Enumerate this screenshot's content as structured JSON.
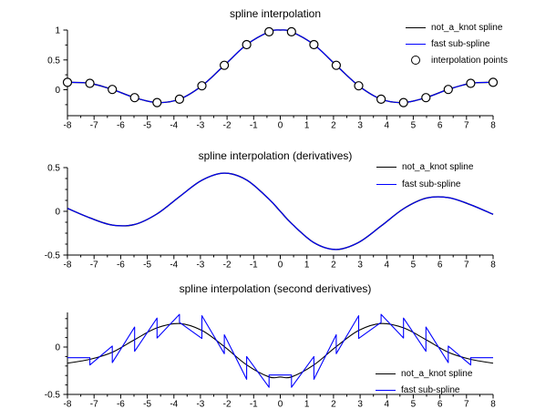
{
  "figure": {
    "background": "#ffffff",
    "colors": {
      "not_a_knot": "#000000",
      "fast_sub_spline": "#0000ff",
      "axis": "#000000"
    }
  },
  "chart_data": [
    {
      "type": "line",
      "title": "spline interpolation",
      "x_range": [
        -8,
        8
      ],
      "y_range": [
        -0.435,
        1.0
      ],
      "x_tick_values": [
        -8,
        -7,
        -6,
        -5,
        -4,
        -3,
        -2,
        -1,
        0,
        1,
        2,
        3,
        4,
        5,
        6,
        7,
        8
      ],
      "x_tick_labels": [
        "-8",
        "-7",
        "-6",
        "-5",
        "-4",
        "-3",
        "-2",
        "-1",
        "0",
        "1",
        "2",
        "3",
        "4",
        "5",
        "6",
        "7",
        "8"
      ],
      "y_tick_values": [
        1,
        0.5,
        0
      ],
      "y_tick_labels": [
        "1",
        "0.5",
        "0"
      ],
      "y_minor_ticks": [
        0.75,
        0.25,
        -0.25
      ],
      "legend": [
        {
          "label": "not_a_knot spline",
          "marker": "line",
          "color": "#000000"
        },
        {
          "label": "fast sub-spline",
          "marker": "line",
          "color": "#0000ff"
        },
        {
          "label": "interpolation points",
          "marker": "circle",
          "color": "#000000"
        }
      ],
      "series": [
        {
          "name": "not_a_knot spline",
          "type": "smooth",
          "color": "#000000",
          "width": 1.4,
          "points": [
            [
              -8,
              0.124
            ],
            [
              -7.158,
              0.107
            ],
            [
              -6.316,
              0.005
            ],
            [
              -5.474,
              -0.132
            ],
            [
              -4.632,
              -0.215
            ],
            [
              -3.789,
              -0.159
            ],
            [
              -2.947,
              0.066
            ],
            [
              -2.105,
              0.409
            ],
            [
              -1.263,
              0.755
            ],
            [
              -0.421,
              0.971
            ],
            [
              0,
              1.0
            ],
            [
              0.421,
              0.971
            ],
            [
              1.263,
              0.755
            ],
            [
              2.105,
              0.409
            ],
            [
              2.947,
              0.066
            ],
            [
              3.789,
              -0.159
            ],
            [
              4.632,
              -0.215
            ],
            [
              5.474,
              -0.132
            ],
            [
              6.316,
              0.005
            ],
            [
              7.158,
              0.107
            ],
            [
              8,
              0.124
            ]
          ]
        },
        {
          "name": "fast sub-spline",
          "type": "smooth",
          "color": "#0000ff",
          "width": 1.1,
          "points": [
            [
              -8,
              0.124
            ],
            [
              -7.158,
              0.107
            ],
            [
              -6.316,
              0.005
            ],
            [
              -5.474,
              -0.132
            ],
            [
              -4.632,
              -0.215
            ],
            [
              -3.789,
              -0.159
            ],
            [
              -2.947,
              0.066
            ],
            [
              -2.105,
              0.409
            ],
            [
              -1.263,
              0.755
            ],
            [
              -0.421,
              0.971
            ],
            [
              0,
              1.0
            ],
            [
              0.421,
              0.971
            ],
            [
              1.263,
              0.755
            ],
            [
              2.105,
              0.409
            ],
            [
              2.947,
              0.066
            ],
            [
              3.789,
              -0.159
            ],
            [
              4.632,
              -0.215
            ],
            [
              5.474,
              -0.132
            ],
            [
              6.316,
              0.005
            ],
            [
              7.158,
              0.107
            ],
            [
              8,
              0.124
            ]
          ]
        },
        {
          "name": "interpolation points",
          "type": "markers",
          "color": "#000000",
          "width": 1.2,
          "points": [
            [
              -8,
              0.124
            ],
            [
              -7.158,
              0.107
            ],
            [
              -6.316,
              0.005
            ],
            [
              -5.474,
              -0.132
            ],
            [
              -4.632,
              -0.215
            ],
            [
              -3.789,
              -0.159
            ],
            [
              -2.947,
              0.066
            ],
            [
              -2.105,
              0.409
            ],
            [
              -1.263,
              0.755
            ],
            [
              -0.421,
              0.971
            ],
            [
              0.421,
              0.971
            ],
            [
              1.263,
              0.755
            ],
            [
              2.105,
              0.409
            ],
            [
              2.947,
              0.066
            ],
            [
              3.789,
              -0.159
            ],
            [
              4.632,
              -0.215
            ],
            [
              5.474,
              -0.132
            ],
            [
              6.316,
              0.005
            ],
            [
              7.158,
              0.107
            ],
            [
              8,
              0.124
            ]
          ]
        }
      ]
    },
    {
      "type": "line",
      "title": "spline interpolation (derivatives)",
      "x_range": [
        -8,
        8
      ],
      "y_range": [
        -0.5,
        0.5
      ],
      "x_tick_values": [
        -8,
        -7,
        -6,
        -5,
        -4,
        -3,
        -2,
        -1,
        0,
        1,
        2,
        3,
        4,
        5,
        6,
        7,
        8
      ],
      "x_tick_labels": [
        "-8",
        "-7",
        "-6",
        "-5",
        "-4",
        "-3",
        "-2",
        "-1",
        "0",
        "1",
        "2",
        "3",
        "4",
        "5",
        "6",
        "7",
        "8"
      ],
      "y_tick_values": [
        0.5,
        0,
        -0.5
      ],
      "y_tick_labels": [
        "0.5",
        "0",
        "-0.5"
      ],
      "y_minor_ticks": [
        0.375,
        0.25,
        0.125,
        -0.125,
        -0.25,
        -0.375
      ],
      "legend": [
        {
          "label": "not_a_knot spline",
          "marker": "line",
          "color": "#000000"
        },
        {
          "label": "fast sub-spline",
          "marker": "line",
          "color": "#0000ff"
        }
      ],
      "series": [
        {
          "name": "not_a_knot spline",
          "type": "smooth",
          "color": "#000000",
          "width": 1.4,
          "points": [
            [
              -8,
              0.034
            ],
            [
              -7.158,
              -0.075
            ],
            [
              -6.316,
              -0.157
            ],
            [
              -5.474,
              -0.15
            ],
            [
              -4.632,
              -0.029
            ],
            [
              -3.789,
              0.168
            ],
            [
              -2.947,
              0.355
            ],
            [
              -2.105,
              0.436
            ],
            [
              -1.263,
              0.358
            ],
            [
              -0.421,
              0.139
            ],
            [
              0,
              0
            ],
            [
              0.421,
              -0.139
            ],
            [
              1.263,
              -0.358
            ],
            [
              2.105,
              -0.436
            ],
            [
              2.947,
              -0.355
            ],
            [
              3.789,
              -0.168
            ],
            [
              4.632,
              0.029
            ],
            [
              5.474,
              0.15
            ],
            [
              6.316,
              0.157
            ],
            [
              7.158,
              0.075
            ],
            [
              8,
              -0.034
            ]
          ]
        },
        {
          "name": "fast sub-spline",
          "type": "smooth",
          "color": "#0000ff",
          "width": 1.1,
          "points": [
            [
              -8,
              0.034
            ],
            [
              -7.158,
              -0.075
            ],
            [
              -6.316,
              -0.157
            ],
            [
              -5.474,
              -0.15
            ],
            [
              -4.632,
              -0.029
            ],
            [
              -3.789,
              0.168
            ],
            [
              -2.947,
              0.355
            ],
            [
              -2.105,
              0.436
            ],
            [
              -1.263,
              0.358
            ],
            [
              -0.421,
              0.139
            ],
            [
              0,
              0
            ],
            [
              0.421,
              -0.139
            ],
            [
              1.263,
              -0.358
            ],
            [
              2.105,
              -0.436
            ],
            [
              2.947,
              -0.355
            ],
            [
              3.789,
              -0.168
            ],
            [
              4.632,
              0.029
            ],
            [
              5.474,
              0.15
            ],
            [
              6.316,
              0.157
            ],
            [
              7.158,
              0.075
            ],
            [
              8,
              -0.034
            ]
          ]
        }
      ]
    },
    {
      "type": "line",
      "title": "spline interpolation (second derivatives)",
      "x_range": [
        -8,
        8
      ],
      "y_range": [
        -0.5,
        0.365
      ],
      "x_tick_values": [
        -8,
        -7,
        -6,
        -5,
        -4,
        -3,
        -2,
        -1,
        0,
        1,
        2,
        3,
        4,
        5,
        6,
        7,
        8
      ],
      "x_tick_labels": [
        "-8",
        "-7",
        "-6",
        "-5",
        "-4",
        "-3",
        "-2",
        "-1",
        "0",
        "1",
        "2",
        "3",
        "4",
        "5",
        "6",
        "7",
        "8"
      ],
      "y_tick_values": [
        0,
        -0.5
      ],
      "y_tick_labels": [
        "0",
        "-0.5"
      ],
      "y_minor_ticks": [
        0.3,
        0.2,
        0.1,
        -0.1,
        -0.2,
        -0.3,
        -0.4
      ],
      "legend": [
        {
          "label": "not_a_knot spline",
          "marker": "line",
          "color": "#000000"
        },
        {
          "label": "fast sub-spline",
          "marker": "line",
          "color": "#0000ff"
        }
      ],
      "series": [
        {
          "name": "not_a_knot spline",
          "type": "smooth",
          "color": "#000000",
          "width": 1.1,
          "points": [
            [
              -8,
              -0.17
            ],
            [
              -7.158,
              -0.13
            ],
            [
              -6.316,
              -0.055
            ],
            [
              -5.474,
              0.078
            ],
            [
              -4.632,
              0.203
            ],
            [
              -3.789,
              0.248
            ],
            [
              -2.947,
              0.175
            ],
            [
              -2.105,
              0.005
            ],
            [
              -1.263,
              -0.189
            ],
            [
              -0.421,
              -0.315
            ],
            [
              0,
              -0.316
            ],
            [
              0.421,
              -0.315
            ],
            [
              1.263,
              -0.189
            ],
            [
              2.105,
              0.005
            ],
            [
              2.947,
              0.175
            ],
            [
              3.789,
              0.248
            ],
            [
              4.632,
              0.203
            ],
            [
              5.474,
              0.078
            ],
            [
              6.316,
              -0.055
            ],
            [
              7.158,
              -0.13
            ],
            [
              8,
              -0.17
            ]
          ]
        },
        {
          "name": "fast sub-spline",
          "type": "polyline",
          "color": "#0000ff",
          "width": 1.1,
          "points": [
            [
              -8,
              -0.113
            ],
            [
              -7.158,
              -0.113
            ],
            [
              -7.158,
              -0.19
            ],
            [
              -6.316,
              0.01
            ],
            [
              -6.316,
              -0.165
            ],
            [
              -5.474,
              0.21
            ],
            [
              -5.474,
              -0.045
            ],
            [
              -4.632,
              0.305
            ],
            [
              -4.632,
              0.095
            ],
            [
              -3.789,
              0.345
            ],
            [
              -3.789,
              0.26
            ],
            [
              -2.947,
              0.09
            ],
            [
              -2.947,
              0.33
            ],
            [
              -2.105,
              -0.07
            ],
            [
              -2.105,
              0.13
            ],
            [
              -1.263,
              -0.34
            ],
            [
              -1.263,
              -0.1
            ],
            [
              -0.421,
              -0.425
            ],
            [
              -0.421,
              -0.295
            ],
            [
              0.421,
              -0.295
            ],
            [
              0.421,
              -0.425
            ],
            [
              1.263,
              -0.1
            ],
            [
              1.263,
              -0.34
            ],
            [
              2.105,
              0.13
            ],
            [
              2.105,
              -0.07
            ],
            [
              2.947,
              0.33
            ],
            [
              2.947,
              0.09
            ],
            [
              3.789,
              0.26
            ],
            [
              3.789,
              0.345
            ],
            [
              4.632,
              0.095
            ],
            [
              4.632,
              0.305
            ],
            [
              5.474,
              -0.045
            ],
            [
              5.474,
              0.21
            ],
            [
              6.316,
              -0.165
            ],
            [
              6.316,
              0.01
            ],
            [
              7.158,
              -0.19
            ],
            [
              7.158,
              -0.113
            ],
            [
              8,
              -0.113
            ]
          ]
        }
      ]
    }
  ]
}
